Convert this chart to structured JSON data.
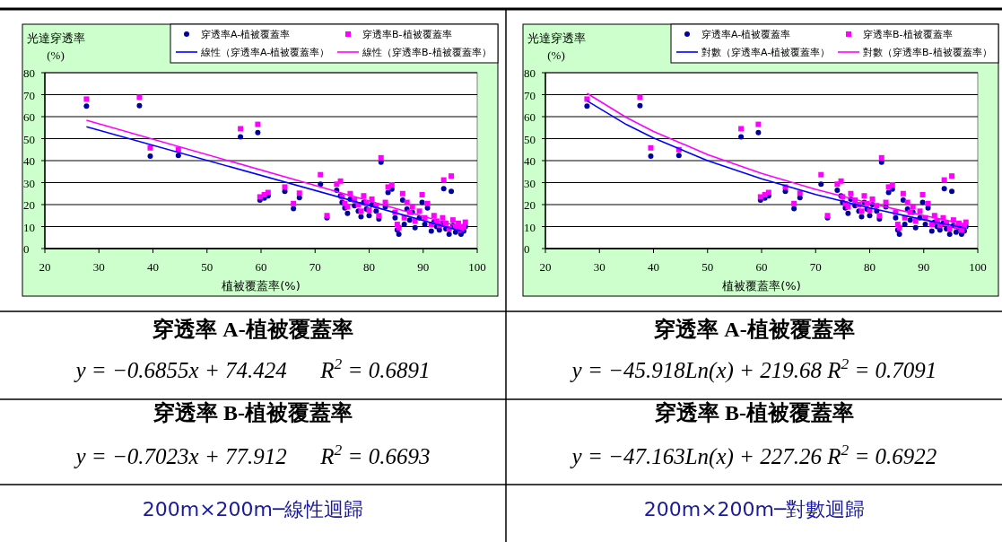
{
  "chart_data": [
    {
      "type": "scatter",
      "ylabel": "光達穿透率\n(%)",
      "xlabel": "植被覆蓋率(%)",
      "xlim": [
        20,
        100
      ],
      "xticks": [
        20,
        30,
        40,
        50,
        60,
        70,
        80,
        90,
        100
      ],
      "ylim": [
        0,
        80
      ],
      "yticks": [
        0,
        10,
        20,
        30,
        40,
        50,
        60,
        70,
        80
      ],
      "grid": "y",
      "legend": "top right",
      "series": [
        {
          "name": "穿透率A-植被覆蓋率",
          "marker": "circle",
          "color": "#0000a0",
          "x": [
            27.7,
            37.5,
            39.5,
            44.7,
            56.2,
            59.4,
            59.8,
            60.6,
            61.3,
            64.4,
            66,
            67.1,
            71,
            72.2,
            82.2,
            93.8,
            95.2,
            74,
            74.7,
            75,
            75.5,
            76,
            76.5,
            77.3,
            78,
            78.5,
            79,
            79.5,
            80,
            80.5,
            81.3,
            81.8,
            83,
            83.5,
            84.2,
            84.8,
            85.2,
            85.5,
            86.2,
            86.5,
            87,
            87.5,
            88,
            88.5,
            89.3,
            89.8,
            90.3,
            90.8,
            91.5,
            92,
            92.5,
            93,
            93.6,
            94.2,
            94.8,
            95.5,
            96,
            96.5,
            97,
            97.5,
            97.8
          ],
          "values": [
            64.8,
            65,
            42,
            42.3,
            50.8,
            52.8,
            22,
            23,
            24,
            26,
            18.2,
            23.2,
            29.3,
            14,
            39.3,
            27.2,
            26,
            26.5,
            24,
            21,
            18.5,
            16,
            22.5,
            19.5,
            17,
            14.5,
            21,
            18,
            15,
            20,
            17,
            13.5,
            19,
            25.5,
            27,
            14,
            8.5,
            6.5,
            22,
            11,
            18,
            13,
            16.5,
            9.5,
            14,
            21,
            11,
            18.5,
            8,
            12,
            10,
            8.5,
            11.5,
            9,
            6.5,
            10.5,
            7.5,
            9.5,
            6.5,
            8,
            10
          ]
        },
        {
          "name": "穿透率B-植被覆蓋率",
          "marker": "square",
          "color": "#ff00ff",
          "x": [
            27.7,
            37.5,
            39.5,
            44.7,
            56.2,
            59.4,
            59.8,
            60.6,
            61.3,
            64.4,
            66,
            67.1,
            71,
            72.2,
            82.2,
            93.8,
            95.2,
            74,
            74.7,
            75,
            75.5,
            76,
            76.5,
            77.3,
            78,
            78.5,
            79,
            79.5,
            80,
            80.5,
            81.3,
            81.8,
            83,
            83.5,
            84.2,
            84.8,
            85.2,
            85.5,
            86.2,
            86.5,
            87,
            87.5,
            88,
            88.5,
            89.3,
            89.8,
            90.3,
            90.8,
            91.5,
            92,
            92.5,
            93,
            93.6,
            94.2,
            94.8,
            95.5,
            96,
            96.5,
            97,
            97.5,
            97.8
          ],
          "values": [
            68,
            68.8,
            45.8,
            45,
            54.5,
            56.5,
            23.5,
            24.5,
            25.5,
            28,
            20.5,
            25.2,
            33.6,
            15,
            41.3,
            31.2,
            33,
            29.3,
            30.7,
            23.5,
            20.5,
            19,
            25,
            22,
            20,
            17,
            24,
            20.5,
            17.5,
            22.5,
            19.5,
            15,
            21,
            28,
            29,
            16.5,
            11,
            9.5,
            25,
            14,
            21,
            16.5,
            19,
            12.5,
            17,
            24.5,
            14,
            20.5,
            11,
            15,
            12.5,
            10.5,
            14,
            11.5,
            9,
            13,
            10,
            11.5,
            8.5,
            10,
            12
          ]
        },
        {
          "name": "線性（穿透率A-植被覆蓋率）",
          "type": "line",
          "marker": "none",
          "color": "#0000ff",
          "x": [
            27.7,
            97.8
          ],
          "values": [
            55.4,
            7.4
          ]
        },
        {
          "name": "線性（穿透率B-植被覆蓋率）",
          "type": "line",
          "marker": "none",
          "color": "#ff00ff",
          "x": [
            27.7,
            97.8
          ],
          "values": [
            58.4,
            9.2
          ]
        }
      ],
      "annotations": [
        "穿透率 A-植被覆蓋率",
        "y = −0.6855x + 74.424      R$^{2}$ = 0.6891",
        "穿透率 B-植被覆蓋率",
        "y = −0.7023x + 77.912      R$^{2}$ = 0.6693",
        "200m×200m─線性迴歸"
      ]
    },
    {
      "type": "scatter",
      "ylabel": "光達穿透率\n(%)",
      "xlabel": "植被覆蓋率(%)",
      "xlim": [
        20,
        100
      ],
      "xticks": [
        20,
        30,
        40,
        50,
        60,
        70,
        80,
        90,
        100
      ],
      "ylim": [
        0,
        80
      ],
      "yticks": [
        0,
        10,
        20,
        30,
        40,
        50,
        60,
        70,
        80
      ],
      "grid": "y",
      "legend": "top right",
      "series": [
        {
          "name": "穿透率A-植被覆蓋率",
          "marker": "circle",
          "color": "#0000a0",
          "x": [
            27.7,
            37.5,
            39.5,
            44.7,
            56.2,
            59.4,
            59.8,
            60.6,
            61.3,
            64.4,
            66,
            67.1,
            71,
            72.2,
            82.2,
            93.8,
            95.2,
            74,
            74.7,
            75,
            75.5,
            76,
            76.5,
            77.3,
            78,
            78.5,
            79,
            79.5,
            80,
            80.5,
            81.3,
            81.8,
            83,
            83.5,
            84.2,
            84.8,
            85.2,
            85.5,
            86.2,
            86.5,
            87,
            87.5,
            88,
            88.5,
            89.3,
            89.8,
            90.3,
            90.8,
            91.5,
            92,
            92.5,
            93,
            93.6,
            94.2,
            94.8,
            95.5,
            96,
            96.5,
            97,
            97.5,
            97.8
          ],
          "values": [
            64.8,
            65,
            42,
            42.3,
            50.8,
            52.8,
            22,
            23,
            24,
            26,
            18.2,
            23.2,
            29.3,
            14,
            39.3,
            27.2,
            26,
            26.5,
            24,
            21,
            18.5,
            16,
            22.5,
            19.5,
            17,
            14.5,
            21,
            18,
            15,
            20,
            17,
            13.5,
            19,
            25.5,
            27,
            14,
            8.5,
            6.5,
            22,
            11,
            18,
            13,
            16.5,
            9.5,
            14,
            21,
            11,
            18.5,
            8,
            12,
            10,
            8.5,
            11.5,
            9,
            6.5,
            10.5,
            7.5,
            9.5,
            6.5,
            8,
            10
          ]
        },
        {
          "name": "穿透率B-植被覆蓋率",
          "marker": "square",
          "color": "#ff00ff",
          "x": [
            27.7,
            37.5,
            39.5,
            44.7,
            56.2,
            59.4,
            59.8,
            60.6,
            61.3,
            64.4,
            66,
            67.1,
            71,
            72.2,
            82.2,
            93.8,
            95.2,
            74,
            74.7,
            75,
            75.5,
            76,
            76.5,
            77.3,
            78,
            78.5,
            79,
            79.5,
            80,
            80.5,
            81.3,
            81.8,
            83,
            83.5,
            84.2,
            84.8,
            85.2,
            85.5,
            86.2,
            86.5,
            87,
            87.5,
            88,
            88.5,
            89.3,
            89.8,
            90.3,
            90.8,
            91.5,
            92,
            92.5,
            93,
            93.6,
            94.2,
            94.8,
            95.5,
            96,
            96.5,
            97,
            97.5,
            97.8
          ],
          "values": [
            68,
            68.8,
            45.8,
            45,
            54.5,
            56.5,
            23.5,
            24.5,
            25.5,
            28,
            20.5,
            25.2,
            33.6,
            15,
            41.3,
            31.2,
            33,
            29.3,
            30.7,
            23.5,
            20.5,
            19,
            25,
            22,
            20,
            17,
            24,
            20.5,
            17.5,
            22.5,
            19.5,
            15,
            21,
            28,
            29,
            16.5,
            11,
            9.5,
            25,
            14,
            21,
            16.5,
            19,
            12.5,
            17,
            24.5,
            14,
            20.5,
            11,
            15,
            12.5,
            10.5,
            14,
            11.5,
            9,
            13,
            10,
            11.5,
            8.5,
            10,
            12
          ]
        },
        {
          "name": "對數（穿透率A-植被覆蓋率）",
          "type": "line",
          "marker": "none",
          "color": "#0000ff",
          "x": [
            27.7,
            35,
            40,
            50,
            60,
            70,
            80,
            90,
            97.8
          ],
          "values": [
            67.2,
            56.4,
            50.3,
            40,
            31.7,
            24.6,
            18.5,
            13.1,
            9.3
          ]
        },
        {
          "name": "對數（穿透率B-植被覆蓋率）",
          "type": "line",
          "marker": "none",
          "color": "#ff00ff",
          "x": [
            27.7,
            35,
            40,
            50,
            60,
            70,
            80,
            90,
            97.8
          ],
          "values": [
            70.6,
            59.6,
            53.3,
            42.8,
            34.2,
            26.9,
            20.6,
            15,
            11.1
          ]
        }
      ],
      "annotations": [
        "穿透率 A-植被覆蓋率",
        "y = −45.918Ln(x) + 219.68 R$^{2}$ = 0.7091",
        "穿透率 B-植被覆蓋率",
        "y = −47.163Ln(x) + 227.26 R$^{2}$ = 0.6922",
        "200m×200m─對數迴歸"
      ]
    }
  ]
}
